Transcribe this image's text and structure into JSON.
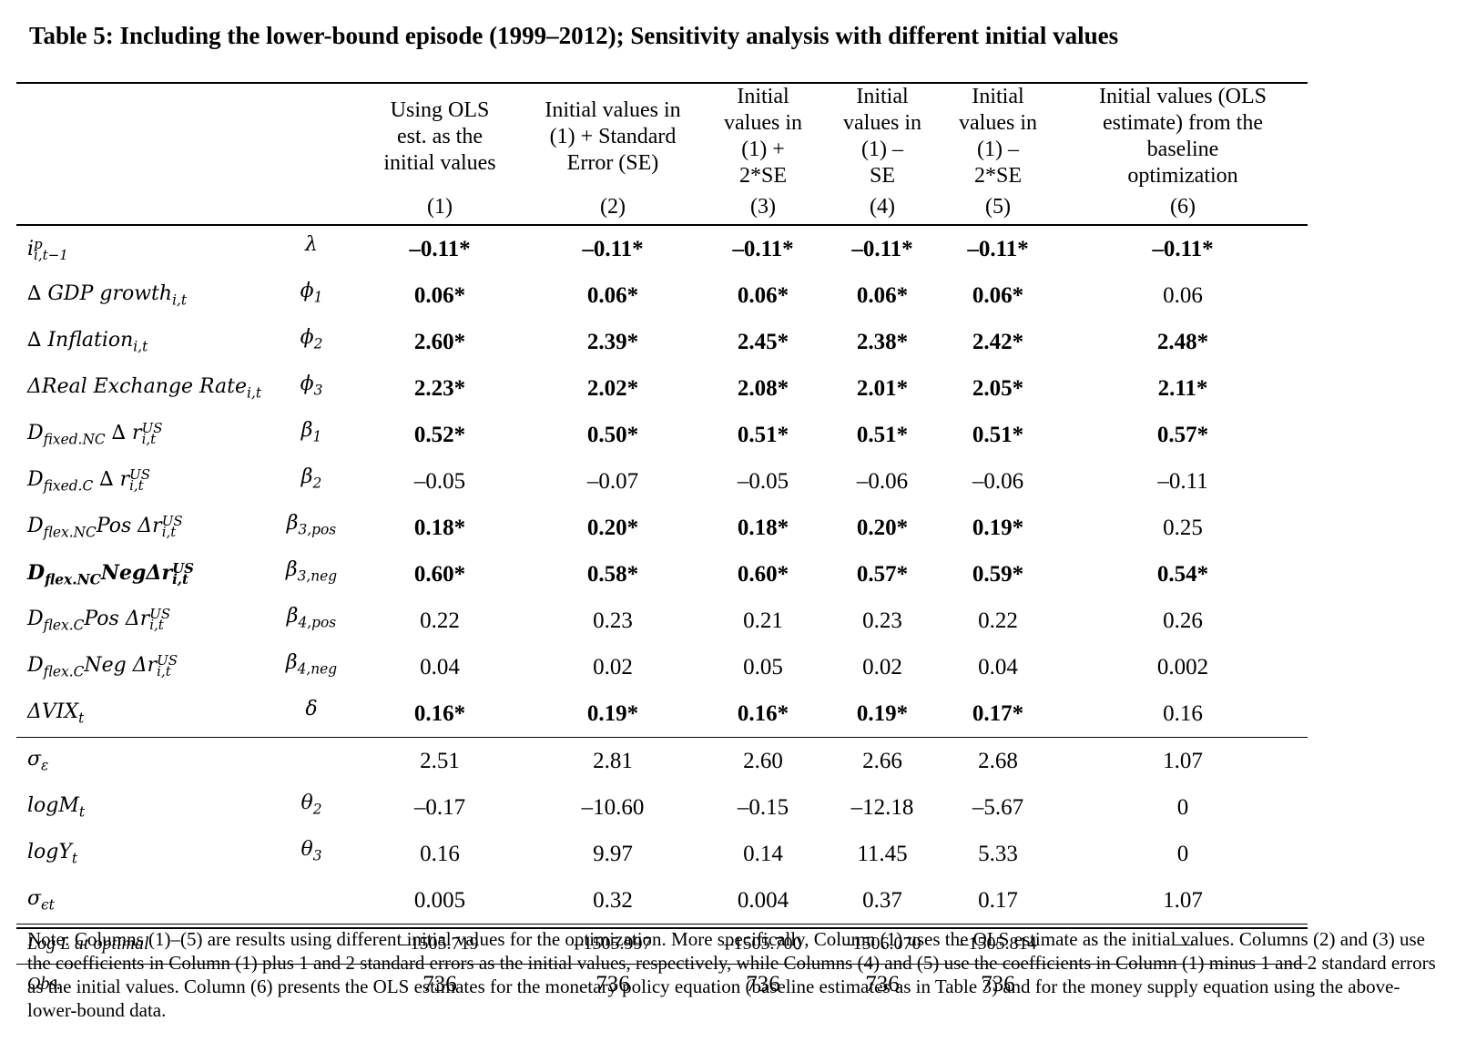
{
  "title": "Table 5: Including the lower-bound episode (1999–2012); Sensitivity analysis with different initial values",
  "columns": [
    {
      "header": [
        "Using OLS",
        "est. as the",
        "initial values"
      ],
      "num": "(1)"
    },
    {
      "header": [
        "Initial values in",
        "(1) + Standard",
        "Error (SE)"
      ],
      "num": "(2)"
    },
    {
      "header": [
        "Initial",
        "values in",
        "(1) +",
        "2*SE"
      ],
      "num": "(3)"
    },
    {
      "header": [
        "Initial",
        "values in",
        "(1) –",
        "SE"
      ],
      "num": "(4)"
    },
    {
      "header": [
        "Initial",
        "values in",
        "(1) –",
        "2*SE"
      ],
      "num": "(5)"
    },
    {
      "header": [
        "Initial values (OLS",
        "estimate) from the",
        "baseline",
        "optimization"
      ],
      "num": "(6)"
    }
  ],
  "coef_rows": [
    {
      "label": "i^p_{i,t−1}",
      "lab_main": "i",
      "lab_sub": "i,t−1",
      "lab_sup": "p",
      "param": "λ",
      "param_main": "λ",
      "param_sub": "",
      "values": [
        "–0.11*",
        "–0.11*",
        "–0.11*",
        "–0.11*",
        "–0.11*",
        "–0.11*"
      ],
      "bold": [
        true,
        true,
        true,
        true,
        true,
        true
      ]
    },
    {
      "label": "∆ GDP growth_{i,t}",
      "lab_main": "∆ GDP growth",
      "lab_sub": "i,t",
      "lab_sup": "",
      "param_main": "ϕ",
      "param_sub": "1",
      "values": [
        "0.06*",
        "0.06*",
        "0.06*",
        "0.06*",
        "0.06*",
        "0.06"
      ],
      "bold": [
        true,
        true,
        true,
        true,
        true,
        false
      ]
    },
    {
      "label": "∆ Inflation_{i,t}",
      "lab_main": "∆ Inflation",
      "lab_sub": "i,t",
      "lab_sup": "",
      "param_main": "ϕ",
      "param_sub": "2",
      "values": [
        "2.60*",
        "2.39*",
        "2.45*",
        "2.38*",
        "2.42*",
        "2.48*"
      ],
      "bold": [
        true,
        true,
        true,
        true,
        true,
        true
      ]
    },
    {
      "label": "ΔReal Exchange Rate_{i,t}",
      "lab_main": "ΔReal Exchange Rate",
      "lab_sub": "i,t",
      "lab_sup": "",
      "param_main": "ϕ",
      "param_sub": "3",
      "values": [
        "2.23*",
        "2.02*",
        "2.08*",
        "2.01*",
        "2.05*",
        "2.11*"
      ],
      "bold": [
        true,
        true,
        true,
        true,
        true,
        true
      ]
    },
    {
      "label": "D_{fixed.NC} ∆ r^{US}_{i,t}",
      "lab_main": "D",
      "lab_sub": "fixed.NC",
      "lab_rest": " ∆ r",
      "rest_sup": "US",
      "rest_sub": "i,t",
      "param_main": "β",
      "param_sub": "1",
      "values": [
        "0.52*",
        "0.50*",
        "0.51*",
        "0.51*",
        "0.51*",
        "0.57*"
      ],
      "bold": [
        true,
        true,
        true,
        true,
        true,
        true
      ]
    },
    {
      "label": "D_{fixed.C} ∆ r^{US}_{i,t}",
      "lab_main": "D",
      "lab_sub": "fixed.C",
      "lab_rest": " ∆ r",
      "rest_sup": "US",
      "rest_sub": "i,t",
      "param_main": "β",
      "param_sub": "2",
      "values": [
        "–0.05",
        "–0.07",
        "–0.05",
        "–0.06",
        "–0.06",
        "–0.11"
      ],
      "bold": [
        false,
        false,
        false,
        false,
        false,
        false
      ]
    },
    {
      "label": "D_{flex.NC}Pos Δr^{US}_{i,t}",
      "lab_main": "D",
      "lab_sub": "flex.NC",
      "lab_rest": "Pos Δr",
      "rest_sup": "US",
      "rest_sub": "i,t",
      "param_main": "β",
      "param_sub": "3,pos",
      "values": [
        "0.18*",
        "0.20*",
        "0.18*",
        "0.20*",
        "0.19*",
        "0.25"
      ],
      "bold": [
        true,
        true,
        true,
        true,
        true,
        false
      ]
    },
    {
      "label": "D_{flex.NC}NegΔr^{US}_{i,t}",
      "lab_main": "D",
      "lab_sub": "flex.NC",
      "lab_rest": "NegΔr",
      "rest_sup": "US",
      "rest_sub": "i,t",
      "label_bold": true,
      "param_main": "β",
      "param_sub": "3,neg",
      "values": [
        "0.60*",
        "0.58*",
        "0.60*",
        "0.57*",
        "0.59*",
        "0.54*"
      ],
      "bold": [
        true,
        true,
        true,
        true,
        true,
        true
      ]
    },
    {
      "label": "D_{flex.C}Pos Δr^{US}_{i,t}",
      "lab_main": "D",
      "lab_sub": "flex.C",
      "lab_rest": "Pos Δr",
      "rest_sup": "US",
      "rest_sub": "i,t",
      "param_main": "β",
      "param_sub": "4,pos",
      "values": [
        "0.22",
        "0.23",
        "0.21",
        "0.23",
        "0.22",
        "0.26"
      ],
      "bold": [
        false,
        false,
        false,
        false,
        false,
        false
      ]
    },
    {
      "label": "D_{flex.C}Neg Δr^{US}_{i,t}",
      "lab_main": "D",
      "lab_sub": "flex.C",
      "lab_rest": "Neg Δr",
      "rest_sup": "US",
      "rest_sub": "i,t",
      "param_main": "β",
      "param_sub": "4,neg",
      "values": [
        "0.04",
        "0.02",
        "0.05",
        "0.02",
        "0.04",
        "0.002"
      ],
      "bold": [
        false,
        false,
        false,
        false,
        false,
        false
      ]
    },
    {
      "label": "ΔVIX_t",
      "lab_main": "ΔVIX",
      "lab_sub": "t",
      "lab_sup": "",
      "param_main": "δ",
      "param_sub": "",
      "values": [
        "0.16*",
        "0.19*",
        "0.16*",
        "0.19*",
        "0.17*",
        "0.16"
      ],
      "bold": [
        true,
        true,
        true,
        true,
        true,
        false
      ]
    }
  ],
  "sigma_rows": [
    {
      "label": "σ_ε",
      "lab_main": "σ",
      "lab_sub": "ε",
      "param_main": "",
      "param_sub": "",
      "values": [
        "2.51",
        "2.81",
        "2.60",
        "2.66",
        "2.68",
        "1.07"
      ]
    },
    {
      "label": "logM_t",
      "lab_main": "logM",
      "lab_sub": "t",
      "param_main": "θ",
      "param_sub": "2",
      "values": [
        "–0.17",
        "–10.60",
        "–0.15",
        "–12.18",
        "–5.67",
        "0"
      ]
    },
    {
      "label": "logY_t",
      "lab_main": "logY",
      "lab_sub": "t",
      "param_main": "θ",
      "param_sub": "3",
      "values": [
        "0.16",
        "9.97",
        "0.14",
        "11.45",
        "5.33",
        "0"
      ]
    },
    {
      "label": "σ_{ϵt}",
      "lab_main": "σ",
      "lab_sub": "ϵt",
      "param_main": "",
      "param_sub": "",
      "values": [
        "0.005",
        "0.32",
        "0.004",
        "0.37",
        "0.17",
        "1.07"
      ]
    }
  ],
  "logL": {
    "label": "Log L at optimal",
    "values": [
      "–1505.719",
      "–1505.997",
      "–1505.700",
      "–1506.070",
      "–1505.814",
      "—"
    ]
  },
  "obs": {
    "label": "Obs.",
    "values": [
      "736",
      "736",
      "736",
      "736",
      "736",
      ""
    ]
  },
  "note": "Note: Columns (1)–(5) are results using different initial values for the optimization. More specifically, Column (1) uses the OLS estimate as the initial values. Columns (2) and (3) use the coefficients in Column (1) plus 1 and 2 standard errors as the initial values, respectively, while Columns (4) and (5) use the coefficients in Column (1) minus 1 and 2 standard errors as the initial values. Column (6) presents the OLS estimates for the monetary policy equation (baseline estimates as in Table 3) and for the money supply equation using the above-lower-bound data."
}
